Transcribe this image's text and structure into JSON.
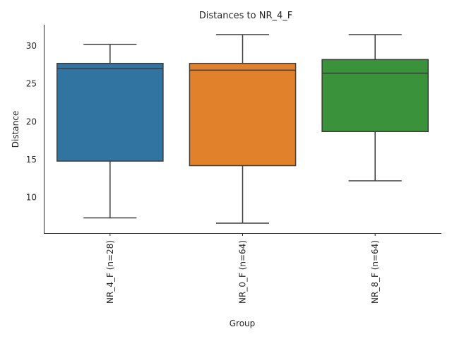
{
  "chart_data": {
    "type": "box",
    "title": "Distances to NR_4_F",
    "xlabel": "Group",
    "ylabel": "Distance",
    "ylim": [
      5.3,
      32.8
    ],
    "yticks": [
      10,
      15,
      20,
      25,
      30
    ],
    "grid": false,
    "groups": [
      {
        "label": "NR_4_F (n=28)",
        "color": "#3274a1",
        "whisker_low": 7.3,
        "q1": 14.8,
        "median": 27.0,
        "q3": 27.7,
        "whisker_high": 30.2
      },
      {
        "label": "NR_0_F (n=64)",
        "color": "#e1812c",
        "whisker_low": 6.6,
        "q1": 14.2,
        "median": 26.8,
        "q3": 27.7,
        "whisker_high": 31.5
      },
      {
        "label": "NR_8_F (n=64)",
        "color": "#3a923a",
        "whisker_low": 12.2,
        "q1": 18.7,
        "median": 26.4,
        "q3": 28.2,
        "whisker_high": 31.5
      }
    ]
  }
}
